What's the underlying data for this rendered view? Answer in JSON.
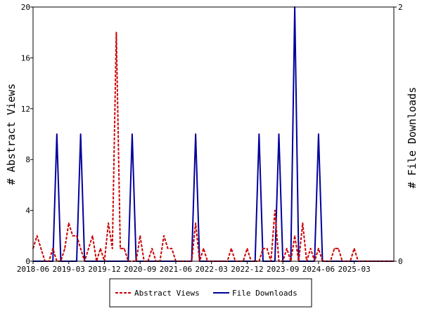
{
  "chart_data": {
    "type": "line",
    "title": "",
    "xlabel": "",
    "ylabel_left": "# Abstract Views",
    "ylabel_right": "# File Downloads",
    "x_ticks": [
      "2018-06",
      "2019-03",
      "2019-12",
      "2020-09",
      "2021-06",
      "2022-03",
      "2022-12",
      "2023-09",
      "2024-06",
      "2025-03"
    ],
    "x_start": "2018-06",
    "x_end": "2026-01",
    "ylim_left": [
      0,
      20
    ],
    "yticks_left": [
      0,
      4,
      8,
      12,
      16,
      20
    ],
    "ylim_right": [
      0,
      2
    ],
    "yticks_right": [
      0,
      2
    ],
    "grid": false,
    "legend_position": "bottom-center",
    "series": [
      {
        "name": "Abstract Views",
        "axis": "left",
        "color": "#cc0000",
        "style": "dashed",
        "points": [
          [
            "2018-06",
            1
          ],
          [
            "2018-07",
            2
          ],
          [
            "2018-08",
            1
          ],
          [
            "2018-09",
            0
          ],
          [
            "2018-10",
            0
          ],
          [
            "2018-11",
            1
          ],
          [
            "2018-12",
            0
          ],
          [
            "2019-01",
            0
          ],
          [
            "2019-02",
            1
          ],
          [
            "2019-03",
            3
          ],
          [
            "2019-04",
            2
          ],
          [
            "2019-05",
            2
          ],
          [
            "2019-06",
            1
          ],
          [
            "2019-07",
            0
          ],
          [
            "2019-08",
            1
          ],
          [
            "2019-09",
            2
          ],
          [
            "2019-10",
            0
          ],
          [
            "2019-11",
            1
          ],
          [
            "2019-12",
            0
          ],
          [
            "2020-01",
            3
          ],
          [
            "2020-02",
            1
          ],
          [
            "2020-03",
            18
          ],
          [
            "2020-04",
            1
          ],
          [
            "2020-05",
            1
          ],
          [
            "2020-06",
            0
          ],
          [
            "2020-07",
            0
          ],
          [
            "2020-08",
            0
          ],
          [
            "2020-09",
            2
          ],
          [
            "2020-10",
            0
          ],
          [
            "2020-11",
            0
          ],
          [
            "2020-12",
            1
          ],
          [
            "2021-01",
            0
          ],
          [
            "2021-02",
            0
          ],
          [
            "2021-03",
            2
          ],
          [
            "2021-04",
            1
          ],
          [
            "2021-05",
            1
          ],
          [
            "2021-06",
            0
          ],
          [
            "2021-07",
            0
          ],
          [
            "2021-08",
            0
          ],
          [
            "2021-09",
            0
          ],
          [
            "2021-10",
            0
          ],
          [
            "2021-11",
            3
          ],
          [
            "2021-12",
            0
          ],
          [
            "2022-01",
            1
          ],
          [
            "2022-02",
            0
          ],
          [
            "2022-03",
            0
          ],
          [
            "2022-04",
            0
          ],
          [
            "2022-05",
            0
          ],
          [
            "2022-06",
            0
          ],
          [
            "2022-07",
            0
          ],
          [
            "2022-08",
            1
          ],
          [
            "2022-09",
            0
          ],
          [
            "2022-10",
            0
          ],
          [
            "2022-11",
            0
          ],
          [
            "2022-12",
            1
          ],
          [
            "2023-01",
            0
          ],
          [
            "2023-02",
            0
          ],
          [
            "2023-03",
            0
          ],
          [
            "2023-04",
            1
          ],
          [
            "2023-05",
            1
          ],
          [
            "2023-06",
            0
          ],
          [
            "2023-07",
            4
          ],
          [
            "2023-08",
            0
          ],
          [
            "2023-09",
            0
          ],
          [
            "2023-10",
            1
          ],
          [
            "2023-11",
            0
          ],
          [
            "2023-12",
            2
          ],
          [
            "2024-01",
            0
          ],
          [
            "2024-02",
            3
          ],
          [
            "2024-03",
            0
          ],
          [
            "2024-04",
            1
          ],
          [
            "2024-05",
            0
          ],
          [
            "2024-06",
            1
          ],
          [
            "2024-07",
            0
          ],
          [
            "2024-08",
            0
          ],
          [
            "2024-09",
            0
          ],
          [
            "2024-10",
            1
          ],
          [
            "2024-11",
            1
          ],
          [
            "2024-12",
            0
          ],
          [
            "2025-01",
            0
          ],
          [
            "2025-02",
            0
          ],
          [
            "2025-03",
            1
          ],
          [
            "2025-04",
            0
          ],
          [
            "2025-05",
            0
          ],
          [
            "2025-06",
            0
          ],
          [
            "2025-07",
            0
          ],
          [
            "2025-08",
            0
          ],
          [
            "2025-09",
            0
          ],
          [
            "2025-10",
            0
          ],
          [
            "2025-11",
            0
          ],
          [
            "2025-12",
            0
          ],
          [
            "2026-01",
            0
          ]
        ]
      },
      {
        "name": "File Downloads",
        "axis": "right",
        "color": "#00009b",
        "style": "solid",
        "points": [
          [
            "2018-06",
            0
          ],
          [
            "2018-11",
            0
          ],
          [
            "2018-12",
            1
          ],
          [
            "2019-01",
            0
          ],
          [
            "2019-05",
            0
          ],
          [
            "2019-06",
            1
          ],
          [
            "2019-07",
            0
          ],
          [
            "2020-06",
            0
          ],
          [
            "2020-07",
            1
          ],
          [
            "2020-08",
            0
          ],
          [
            "2021-10",
            0
          ],
          [
            "2021-11",
            1
          ],
          [
            "2021-12",
            0
          ],
          [
            "2023-02",
            0
          ],
          [
            "2023-03",
            1
          ],
          [
            "2023-04",
            0
          ],
          [
            "2023-07",
            0
          ],
          [
            "2023-08",
            1
          ],
          [
            "2023-09",
            0
          ],
          [
            "2023-11",
            0
          ],
          [
            "2023-12",
            2
          ],
          [
            "2024-01",
            0
          ],
          [
            "2024-05",
            0
          ],
          [
            "2024-06",
            1
          ],
          [
            "2024-07",
            0
          ],
          [
            "2026-01",
            0
          ]
        ]
      }
    ]
  }
}
